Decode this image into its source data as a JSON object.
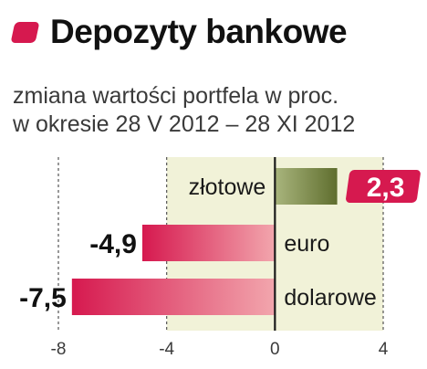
{
  "header": {
    "title": "Depozyty bankowe",
    "subtitle_line1": "zmiana wartości portfela w proc.",
    "subtitle_line2": "w okresie 28 V 2012 – 28 XI 2012"
  },
  "colors": {
    "accent": "#d6194f",
    "positive_bar": "#6b7a3a",
    "negative_bar": "#d6194f",
    "band": "#f1f2d8"
  },
  "chart_data": {
    "type": "bar",
    "orientation": "horizontal",
    "title": "Depozyty bankowe",
    "subtitle": "zmiana wartości portfela w proc. w okresie 28 V 2012 – 28 XI 2012",
    "categories": [
      "złotowe",
      "euro",
      "dolarowe"
    ],
    "values": [
      2.3,
      -4.9,
      -7.5
    ],
    "value_labels": [
      "2,3",
      "-4,9",
      "-7,5"
    ],
    "xlim": [
      -8,
      4
    ],
    "xticks": [
      -8,
      -4,
      0,
      4
    ],
    "xtick_labels": [
      "-8",
      "-4",
      "0",
      "4"
    ],
    "xlabel": "",
    "ylabel": "",
    "grid": "vertical dashed"
  }
}
